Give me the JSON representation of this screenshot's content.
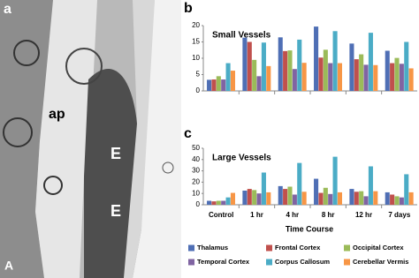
{
  "panel_labels": [
    "a",
    "b",
    "c"
  ],
  "micrograph": {
    "labels": [
      "ap",
      "E",
      "E",
      "A"
    ]
  },
  "x_label": "Time Course",
  "chart_data": [
    {
      "type": "bar",
      "title": "Small Vessels",
      "categories": [
        "Control",
        "1 hr",
        "4 hr",
        "8 hr",
        "12 hr",
        "7 days"
      ],
      "ylim": [
        0,
        20
      ],
      "yticks": [
        0,
        5,
        10,
        15,
        20
      ],
      "grid": false,
      "series": [
        {
          "name": "Thalamus",
          "color": "#4f6fb5",
          "values": [
            3.4,
            16.3,
            16.4,
            19.7,
            14.5,
            12.3
          ]
        },
        {
          "name": "Frontal Cortex",
          "color": "#c0504d",
          "values": [
            3.5,
            15,
            12.2,
            10.2,
            9.7,
            8.5
          ]
        },
        {
          "name": "Occipital Cortex",
          "color": "#9bbb59",
          "values": [
            4.5,
            9.5,
            12.4,
            12.6,
            11.2,
            10.1
          ]
        },
        {
          "name": "Temporal Cortex",
          "color": "#8064a2",
          "values": [
            3.5,
            4.5,
            6.7,
            8.5,
            8,
            8.3
          ]
        },
        {
          "name": "Corpus Callosum",
          "color": "#4bacc6",
          "values": [
            8.5,
            14.8,
            15.7,
            18.3,
            17.8,
            15
          ]
        },
        {
          "name": "Cerebellar Vermis",
          "color": "#f79646",
          "values": [
            6.2,
            7.6,
            8.6,
            8.5,
            7.9,
            6.9
          ]
        }
      ]
    },
    {
      "type": "bar",
      "title": "Large Vessels",
      "categories": [
        "Control",
        "1 hr",
        "4 hr",
        "8 hr",
        "12 hr",
        "7 days"
      ],
      "ylim": [
        0,
        50
      ],
      "yticks": [
        0,
        10,
        20,
        30,
        40,
        50
      ],
      "grid": false,
      "series": [
        {
          "name": "Thalamus",
          "color": "#4f6fb5",
          "values": [
            3.5,
            12.5,
            16.5,
            23,
            14,
            11
          ]
        },
        {
          "name": "Frontal Cortex",
          "color": "#c0504d",
          "values": [
            3,
            14,
            14,
            10.5,
            11.5,
            9
          ]
        },
        {
          "name": "Occipital Cortex",
          "color": "#9bbb59",
          "values": [
            3.5,
            13,
            16,
            15,
            12,
            7.5
          ]
        },
        {
          "name": "Temporal Cortex",
          "color": "#8064a2",
          "values": [
            3.5,
            10,
            9,
            9.5,
            7.5,
            6.5
          ]
        },
        {
          "name": "Corpus Callosum",
          "color": "#4bacc6",
          "values": [
            6.5,
            28.5,
            37,
            42.5,
            34,
            27
          ]
        },
        {
          "name": "Cerebellar Vermis",
          "color": "#f79646",
          "values": [
            10.5,
            11,
            11.5,
            11,
            12,
            11
          ]
        }
      ]
    }
  ]
}
